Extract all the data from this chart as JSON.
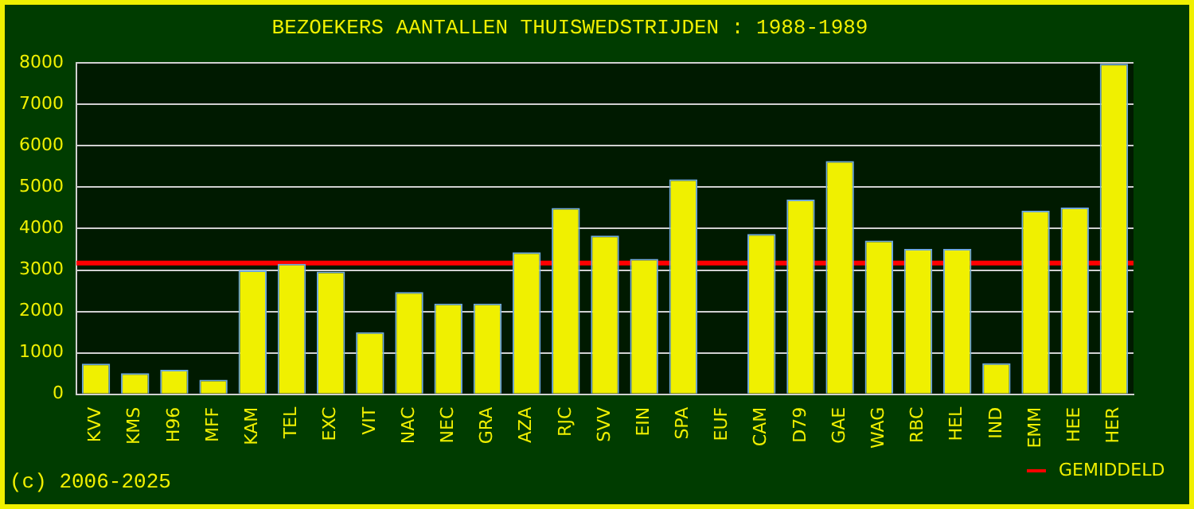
{
  "chart_data": {
    "type": "bar",
    "title": "BEZOEKERS AANTALLEN THUISWEDSTRIJDEN : 1988-1989",
    "categories": [
      "KVV",
      "KMS",
      "H96",
      "MFF",
      "KAM",
      "TEL",
      "EXC",
      "VIT",
      "NAC",
      "NEC",
      "GRA",
      "AZA",
      "RJC",
      "SVV",
      "EIN",
      "SPA",
      "EUF",
      "CAM",
      "D79",
      "GAE",
      "WAG",
      "RBC",
      "HEL",
      "IND",
      "EMM",
      "HEE",
      "HER"
    ],
    "values": [
      740,
      510,
      590,
      350,
      2990,
      3150,
      2960,
      1500,
      2470,
      2190,
      2190,
      3430,
      4500,
      3830,
      3270,
      5190,
      0,
      3870,
      4700,
      5630,
      3710,
      3510,
      3510,
      750,
      4430,
      4510,
      7980
    ],
    "color": "#f0f000",
    "ylim": [
      0,
      8000
    ],
    "yticks": [
      0,
      1000,
      2000,
      3000,
      4000,
      5000,
      6000,
      7000,
      8000
    ],
    "grid": "y",
    "ref_lines": [
      {
        "axis": "y",
        "value": 3170,
        "label": "GEMIDDELD",
        "color": "#ff0000"
      }
    ],
    "legend": "bottom right",
    "annotations": [
      "(c) 2006-2025"
    ]
  }
}
